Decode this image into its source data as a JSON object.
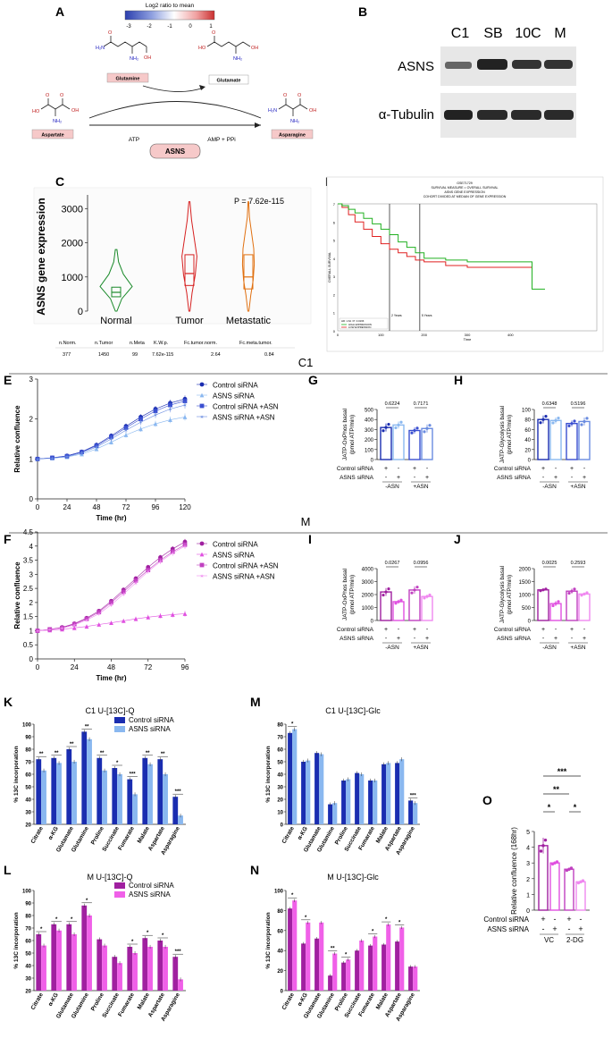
{
  "figure": {
    "panel_letters": [
      "A",
      "B",
      "C",
      "D",
      "E",
      "F",
      "G",
      "H",
      "I",
      "J",
      "K",
      "L",
      "M",
      "N",
      "O"
    ],
    "section_c1": "C1",
    "section_m": "M"
  },
  "panel_a": {
    "colorbar_title": "Log2 ratio to mean",
    "colorbar_ticks": [
      "-3",
      "-2",
      "-1",
      "0",
      "1"
    ],
    "colorbar_colors": [
      "#2c3fae",
      "#8fa0e0",
      "#ffffff",
      "#f0a0a0",
      "#c93030"
    ],
    "glutamine": "Glutamine",
    "glutamate": "Glutamate",
    "aspartate": "Aspartate",
    "asparagine": "Asparagine",
    "atp": "ATP",
    "amp_ppi": "AMP + PPi",
    "enzyme": "ASNS"
  },
  "panel_b": {
    "lanes": [
      "C1",
      "SB",
      "10C",
      "M"
    ],
    "rows": [
      "ASNS",
      "α-Tubulin"
    ]
  },
  "panel_c": {
    "p_value": "P = 7.62e-115",
    "table_headers": [
      "n.Norm.",
      "n.Tumor",
      "n.Meta",
      "K.W.p.",
      "Fc.tumor.norm.",
      "Fc.meta.tumor."
    ],
    "table_values": [
      "377",
      "1450",
      "99",
      "7.62e-115",
      "2.64",
      "0.84"
    ]
  },
  "panel_d": {
    "title_lines": [
      "GSE71729",
      "SURVIVAL MEASURE = OVERALL SURVIVAL",
      "ASNS GENE EXPRESSION",
      "COHORT DIVIDED AT MEDIAN OF GENE EXPRESSION"
    ],
    "ylabel": "OVERALL SURVIVAL",
    "xlabel": "Time",
    "vline_labels": [
      "2 Years",
      "5 Years"
    ],
    "legend": [
      "HIGH EXPRESSION",
      "LOW EXPRESSION"
    ],
    "legend_note": "HR: 1.62 / P: 0.0166",
    "yticks": [
      "0",
      "1",
      "2",
      "3",
      "4",
      "5",
      "6",
      "7"
    ],
    "xticks": [
      "0",
      "100",
      "200",
      "300",
      "400"
    ]
  },
  "panel_g": {
    "ylabel_line1": "JATP-OxPhos basal",
    "ylabel_line2": "(pmol ATP/min)",
    "pvals": [
      "0.6224",
      "0.7171"
    ]
  },
  "panel_h": {
    "ylabel_line1": "JATP-Glycolysis basal",
    "ylabel_line2": "(pmol ATP/min)",
    "pvals": [
      "0.6348",
      "0.5196"
    ]
  },
  "panel_i": {
    "ylabel_line1": "JATP-OxPhos basal",
    "ylabel_line2": "(pmol ATP/min)",
    "pvals": [
      "0.0267",
      "0.0956"
    ]
  },
  "panel_j": {
    "ylabel_line1": "JATP-Glycolysis basal",
    "ylabel_line2": "(pmol ATP/min)",
    "pvals": [
      "0.0025",
      "0.2593"
    ]
  },
  "seahorse_labels": {
    "control": "Control siRNA",
    "asns": "ASNS siRNA",
    "minus_asn": "-ASN",
    "plus_asn": "+ASN",
    "row_control": [
      "+",
      "-",
      "+",
      "-"
    ],
    "row_asns": [
      "-",
      "+",
      "-",
      "+"
    ]
  },
  "panel_o": {
    "ylabel": "Relative confluence (168hr)",
    "groups": [
      "VC",
      "2-DG"
    ],
    "row_control": [
      "+",
      "-",
      "+",
      "-"
    ],
    "row_asns": [
      "-",
      "+",
      "-",
      "+"
    ],
    "sig": [
      "***",
      "**",
      "*",
      "*"
    ]
  },
  "chart_data": [
    {
      "id": "C",
      "type": "violin",
      "categories": [
        "Normal",
        "Tumor",
        "Metastatic"
      ],
      "medians": [
        550,
        1100,
        1000
      ],
      "q1": [
        420,
        750,
        650
      ],
      "q3": [
        700,
        1650,
        1650
      ],
      "mins": [
        0,
        0,
        0
      ],
      "maxs": [
        1800,
        3200,
        3200
      ],
      "colors": [
        "#1a8a2a",
        "#d62020",
        "#e07010"
      ],
      "ylabel": "ASNS gene expression",
      "yticks": [
        0,
        1000,
        2000,
        3000
      ],
      "ylim": [
        0,
        3400
      ]
    },
    {
      "id": "D",
      "type": "line",
      "title": "",
      "xlim": [
        0,
        600
      ],
      "ylim": [
        0,
        7
      ],
      "series": [
        {
          "name": "HIGH EXPRESSION",
          "color": "#e02020",
          "x": [
            0,
            10,
            25,
            40,
            60,
            80,
            100,
            120,
            140,
            160,
            180,
            200,
            250,
            300,
            350,
            400,
            450
          ],
          "y": [
            7.0,
            6.8,
            6.4,
            6.0,
            5.6,
            5.2,
            4.8,
            4.5,
            4.3,
            4.1,
            3.9,
            3.8,
            3.6,
            3.5,
            3.5,
            3.5,
            3.5
          ]
        },
        {
          "name": "LOW EXPRESSION",
          "color": "#20b020",
          "x": [
            0,
            10,
            25,
            40,
            60,
            80,
            100,
            120,
            140,
            160,
            180,
            200,
            250,
            300,
            350,
            400,
            430,
            450,
            480
          ],
          "y": [
            7.0,
            6.9,
            6.7,
            6.5,
            6.2,
            5.9,
            5.6,
            5.3,
            4.9,
            4.6,
            4.3,
            4.0,
            3.9,
            3.8,
            3.8,
            3.8,
            3.8,
            2.3,
            2.3
          ]
        }
      ]
    },
    {
      "id": "E",
      "type": "line",
      "xlabel": "Time (hr)",
      "ylabel": "Relative confluence",
      "xlim": [
        0,
        120
      ],
      "ylim": [
        0,
        3
      ],
      "xticks": [
        0,
        24,
        48,
        72,
        96,
        120
      ],
      "yticks": [
        0,
        1,
        2,
        3
      ],
      "series": [
        {
          "name": "Control siRNA",
          "color": "#1a2db0",
          "marker": "circle",
          "x": [
            0,
            12,
            24,
            36,
            48,
            60,
            72,
            84,
            96,
            108,
            120
          ],
          "y": [
            1.0,
            1.03,
            1.08,
            1.18,
            1.35,
            1.58,
            1.82,
            2.05,
            2.25,
            2.4,
            2.5
          ]
        },
        {
          "name": "ASNS siRNA",
          "color": "#8ab8f0",
          "marker": "triangle",
          "x": [
            0,
            12,
            24,
            36,
            48,
            60,
            72,
            84,
            96,
            108,
            120
          ],
          "y": [
            1.0,
            1.02,
            1.05,
            1.12,
            1.25,
            1.42,
            1.6,
            1.75,
            1.88,
            1.98,
            2.05
          ]
        },
        {
          "name": "Control siRNA +ASN",
          "color": "#3a4fd0",
          "marker": "square",
          "x": [
            0,
            12,
            24,
            36,
            48,
            60,
            72,
            84,
            96,
            108,
            120
          ],
          "y": [
            1.0,
            1.03,
            1.07,
            1.17,
            1.33,
            1.55,
            1.78,
            2.0,
            2.2,
            2.35,
            2.45
          ]
        },
        {
          "name": "ASNS siRNA +ASN",
          "color": "#6a8ce0",
          "marker": "star",
          "x": [
            0,
            12,
            24,
            36,
            48,
            60,
            72,
            84,
            96,
            108,
            120
          ],
          "y": [
            1.0,
            1.02,
            1.06,
            1.15,
            1.3,
            1.5,
            1.72,
            1.92,
            2.1,
            2.25,
            2.35
          ]
        }
      ]
    },
    {
      "id": "F",
      "type": "line",
      "xlabel": "Time (hr)",
      "ylabel": "Relative confluence",
      "xlim": [
        0,
        96
      ],
      "ylim": [
        0,
        4.5
      ],
      "xticks": [
        0,
        24,
        48,
        72,
        96
      ],
      "yticks": [
        0,
        0.5,
        1,
        1.5,
        2,
        2.5,
        3,
        3.5,
        4,
        4.5
      ],
      "series": [
        {
          "name": "Control siRNA",
          "color": "#a020a0",
          "marker": "circle",
          "x": [
            0,
            8,
            16,
            24,
            32,
            40,
            48,
            56,
            64,
            72,
            80,
            88,
            96
          ],
          "y": [
            1.0,
            1.05,
            1.12,
            1.25,
            1.45,
            1.7,
            2.05,
            2.45,
            2.85,
            3.25,
            3.6,
            3.9,
            4.15
          ]
        },
        {
          "name": "ASNS siRNA",
          "color": "#e050e0",
          "marker": "triangle",
          "x": [
            0,
            8,
            16,
            24,
            32,
            40,
            48,
            56,
            64,
            72,
            80,
            88,
            96
          ],
          "y": [
            1.0,
            1.02,
            1.05,
            1.1,
            1.15,
            1.22,
            1.28,
            1.35,
            1.42,
            1.48,
            1.53,
            1.57,
            1.6
          ]
        },
        {
          "name": "Control siRNA +ASN",
          "color": "#c040c0",
          "marker": "square",
          "x": [
            0,
            8,
            16,
            24,
            32,
            40,
            48,
            56,
            64,
            72,
            80,
            88,
            96
          ],
          "y": [
            1.0,
            1.05,
            1.1,
            1.23,
            1.42,
            1.66,
            2.0,
            2.38,
            2.78,
            3.15,
            3.5,
            3.8,
            4.05
          ]
        },
        {
          "name": "ASNS siRNA +ASN",
          "color": "#f088f0",
          "marker": "star",
          "x": [
            0,
            8,
            16,
            24,
            32,
            40,
            48,
            56,
            64,
            72,
            80,
            88,
            96
          ],
          "y": [
            1.0,
            1.04,
            1.09,
            1.2,
            1.38,
            1.6,
            1.92,
            2.3,
            2.7,
            3.1,
            3.45,
            3.75,
            4.0
          ]
        }
      ]
    },
    {
      "id": "G",
      "type": "bar",
      "categories": [
        "1",
        "2",
        "3",
        "4"
      ],
      "values": [
        320,
        345,
        290,
        310
      ],
      "errors": [
        40,
        35,
        30,
        40
      ],
      "colors": [
        "#1a2db0",
        "#8ab8f0",
        "#3a4fd0",
        "#6a8ce0"
      ],
      "yticks": [
        0,
        100,
        200,
        300,
        400,
        500
      ],
      "ylim": [
        0,
        500
      ]
    },
    {
      "id": "H",
      "type": "bar",
      "categories": [
        "1",
        "2",
        "3",
        "4"
      ],
      "values": [
        80,
        78,
        72,
        76
      ],
      "errors": [
        8,
        6,
        6,
        8
      ],
      "colors": [
        "#1a2db0",
        "#8ab8f0",
        "#3a4fd0",
        "#6a8ce0"
      ],
      "yticks": [
        0,
        20,
        40,
        60,
        80,
        100
      ],
      "ylim": [
        0,
        100
      ]
    },
    {
      "id": "I",
      "type": "bar",
      "categories": [
        "1",
        "2",
        "3",
        "4"
      ],
      "values": [
        2200,
        1450,
        2350,
        1850
      ],
      "errors": [
        300,
        150,
        280,
        150
      ],
      "colors": [
        "#a020a0",
        "#e050e0",
        "#c040c0",
        "#f088f0"
      ],
      "yticks": [
        0,
        1000,
        2000,
        3000,
        4000
      ],
      "ylim": [
        0,
        4000
      ]
    },
    {
      "id": "J",
      "type": "bar",
      "categories": [
        "1",
        "2",
        "3",
        "4"
      ],
      "values": [
        1180,
        650,
        1130,
        1020
      ],
      "errors": [
        40,
        100,
        100,
        60
      ],
      "colors": [
        "#a020a0",
        "#e050e0",
        "#c040c0",
        "#f088f0"
      ],
      "yticks": [
        0,
        500,
        1000,
        1500,
        2000
      ],
      "ylim": [
        0,
        2000
      ]
    },
    {
      "id": "K",
      "type": "bar",
      "title": "C1 U-[13C]-Q",
      "ylabel": "% 13C incorporation",
      "categories": [
        "Citrate",
        "α-KG",
        "Glutamate",
        "Glutamine",
        "Proline",
        "Succinate",
        "Fumarate",
        "Malate",
        "Aspartate",
        "Asparagine"
      ],
      "series": [
        {
          "name": "Control siRNA",
          "color": "#1a2db0",
          "values": [
            72,
            73,
            80,
            94,
            73,
            65,
            56,
            73,
            72,
            42
          ]
        },
        {
          "name": "ASNS siRNA",
          "color": "#8ab8f0",
          "values": [
            63,
            69,
            70,
            88,
            63,
            60,
            44,
            68,
            60,
            27
          ]
        }
      ],
      "sig": [
        "**",
        "**",
        "**",
        "**",
        "**",
        "*",
        "***",
        "**",
        "**",
        "***"
      ],
      "yticks": [
        20,
        30,
        40,
        50,
        60,
        70,
        80,
        90,
        100
      ],
      "ylim": [
        20,
        100
      ]
    },
    {
      "id": "L",
      "type": "bar",
      "title": "M U-[13C]-Q",
      "ylabel": "% 13C incorporation",
      "categories": [
        "Citrate",
        "α-KG",
        "Glutamate",
        "Glutamine",
        "Proline",
        "Succinate",
        "Fumarate",
        "Malate",
        "Aspartate",
        "Asparagine"
      ],
      "series": [
        {
          "name": "Control siRNA",
          "color": "#a020a0",
          "values": [
            65,
            73,
            73,
            88,
            61,
            47,
            55,
            62,
            60,
            47
          ]
        },
        {
          "name": "ASNS siRNA",
          "color": "#f060e8",
          "values": [
            56,
            68,
            65,
            80,
            56,
            42,
            50,
            55,
            55,
            29
          ]
        }
      ],
      "sig": [
        "*",
        "*",
        "*",
        "*",
        "",
        "",
        "*",
        "*",
        "*",
        "***"
      ],
      "yticks": [
        20,
        30,
        40,
        50,
        60,
        70,
        80,
        90,
        100
      ],
      "ylim": [
        20,
        100
      ]
    },
    {
      "id": "M",
      "type": "bar",
      "title": "C1 U-[13C]-Glc",
      "ylabel": "% 13C incorporation",
      "categories": [
        "Citrate",
        "α-KG",
        "Glutamate",
        "Glutamine",
        "Proline",
        "Succinate",
        "Fumarate",
        "Malate",
        "Aspartate",
        "Asparagine"
      ],
      "series": [
        {
          "name": "Control siRNA",
          "color": "#1a2db0",
          "values": [
            73,
            50,
            57,
            16,
            35,
            41,
            35,
            48,
            49,
            19
          ]
        },
        {
          "name": "ASNS siRNA",
          "color": "#8ab8f0",
          "values": [
            76,
            51,
            56,
            17,
            36,
            40,
            35,
            49,
            52,
            17
          ]
        }
      ],
      "sig": [
        "*",
        "",
        "",
        "",
        "",
        "",
        "",
        "",
        "",
        "***"
      ],
      "yticks": [
        0,
        10,
        20,
        30,
        40,
        50,
        60,
        70,
        80
      ],
      "ylim": [
        0,
        80
      ]
    },
    {
      "id": "N",
      "type": "bar",
      "title": "M U-[13C]-Glc",
      "ylabel": "% 13C incorporation",
      "categories": [
        "Citrate",
        "α-KG",
        "Glutamate",
        "Glutamine",
        "Proline",
        "Succinate",
        "Fumarate",
        "Malate",
        "Aspartate",
        "Asparagine"
      ],
      "series": [
        {
          "name": "Control siRNA",
          "color": "#a020a0",
          "values": [
            82,
            47,
            52,
            15,
            28,
            40,
            45,
            46,
            49,
            24
          ]
        },
        {
          "name": "ASNS siRNA",
          "color": "#f060e8",
          "values": [
            90,
            68,
            68,
            37,
            31,
            50,
            54,
            66,
            63,
            24
          ]
        }
      ],
      "sig": [
        "*",
        "*",
        "",
        "**",
        "*",
        "",
        "*",
        "*",
        "*",
        ""
      ],
      "yticks": [
        0,
        20,
        40,
        60,
        80,
        100
      ],
      "ylim": [
        0,
        100
      ]
    },
    {
      "id": "O",
      "type": "bar",
      "categories": [
        "1",
        "2",
        "3",
        "4"
      ],
      "values": [
        4.1,
        3.0,
        2.6,
        1.8
      ],
      "errors": [
        0.5,
        0.1,
        0.1,
        0.1
      ],
      "colors": [
        "#a020a0",
        "#e050e0",
        "#c040c0",
        "#f088f0"
      ],
      "yticks": [
        0,
        1,
        2,
        3,
        4,
        5
      ],
      "ylim": [
        0,
        5
      ]
    }
  ]
}
